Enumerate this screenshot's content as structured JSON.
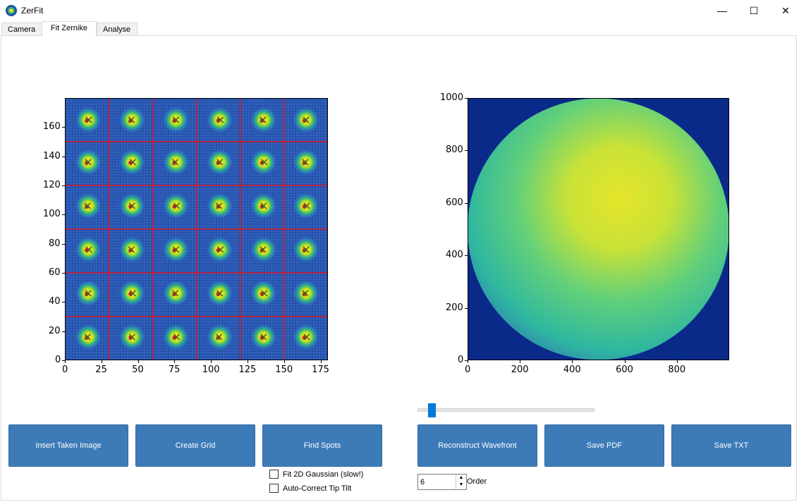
{
  "window": {
    "title": "ZerFit",
    "minimize": "—",
    "maximize": "☐",
    "close": "✕"
  },
  "tabs": [
    {
      "label": "Camera"
    },
    {
      "label": "Fit Zernike"
    },
    {
      "label": "Analyse"
    }
  ],
  "active_tab": "Fit Zernike",
  "buttons": {
    "insert": "Insert Taken Image",
    "create_grid": "Create Grid",
    "find_spots": "Find Spots",
    "reconstruct": "Reconstruct Wavefront",
    "save_pdf": "Save PDF",
    "save_txt": "Save TXT"
  },
  "checkboxes": {
    "fit_gaussian": {
      "label": "Fit 2D Gaussian (slow!)",
      "checked": false
    },
    "auto_correct": {
      "label": "Auto-Correct Tip Tilt",
      "checked": false
    }
  },
  "order": {
    "value": "6",
    "label": "Order"
  },
  "slider": {
    "value": 0.08
  },
  "chart_data": [
    {
      "type": "heatmap",
      "title": "",
      "xlabel": "",
      "ylabel": "",
      "xlim": [
        0,
        180
      ],
      "ylim": [
        0,
        180
      ],
      "xticks": [
        "0",
        "25",
        "50",
        "75",
        "100",
        "125",
        "150",
        "175"
      ],
      "yticks": [
        "0",
        "20",
        "40",
        "60",
        "80",
        "100",
        "120",
        "140",
        "160"
      ],
      "grid_lines_x": [
        30,
        60,
        90,
        120,
        150
      ],
      "grid_lines_y": [
        30,
        60,
        90,
        120,
        150
      ],
      "spot_x": [
        16,
        46,
        76,
        106,
        136,
        165
      ],
      "spot_y": [
        16,
        46,
        76,
        106,
        136,
        165
      ]
    },
    {
      "type": "heatmap",
      "title": "",
      "xlabel": "",
      "ylabel": "",
      "xlim": [
        0,
        1000
      ],
      "ylim": [
        0,
        1000
      ],
      "xticks": [
        "0",
        "200",
        "400",
        "600",
        "800"
      ],
      "yticks": [
        "0",
        "200",
        "400",
        "600",
        "800",
        "1000"
      ],
      "center": [
        500,
        500
      ],
      "radius": 500
    }
  ],
  "colors": {
    "button": "#3c7bb8",
    "accent": "#0078d7",
    "grid_red": "#e0141e",
    "field": "#0a2a8a"
  }
}
